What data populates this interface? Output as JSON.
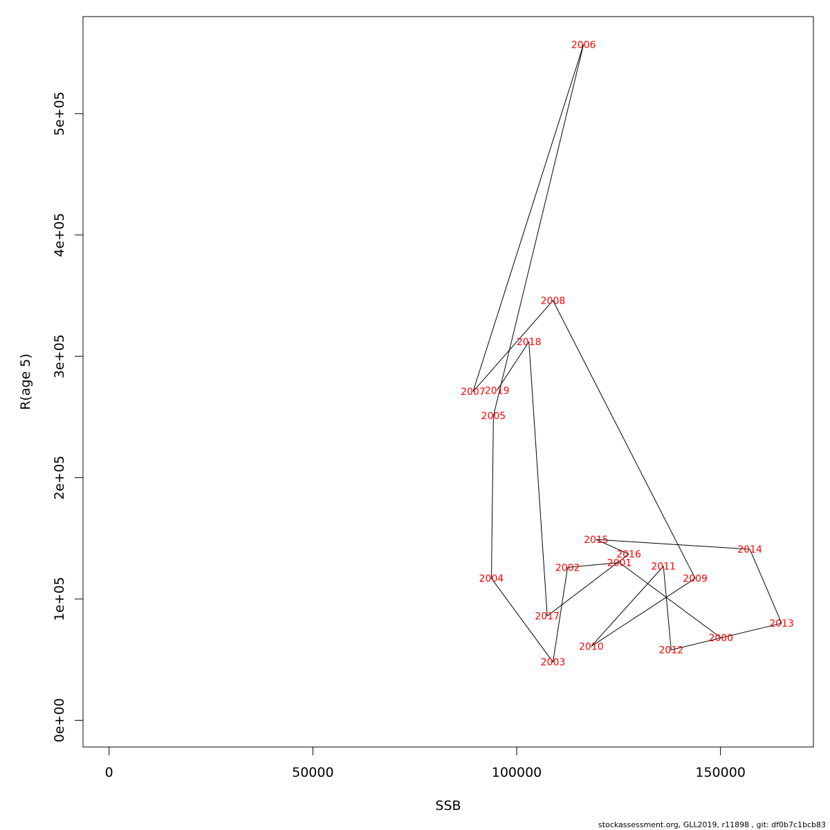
{
  "footer": "stockassessment.org, GLL2019, r11898 , git: df0b7c1bcb83",
  "chart_data": {
    "type": "line",
    "xlabel": "SSB",
    "ylabel": "R(age 5)",
    "xlim": [
      -6400,
      172800
    ],
    "ylim": [
      -22000,
      580000
    ],
    "x_ticks": [
      0,
      50000,
      100000,
      150000
    ],
    "x_tick_labels": [
      "0",
      "50000",
      "100000",
      "150000"
    ],
    "y_ticks": [
      0,
      100000,
      200000,
      300000,
      400000,
      500000
    ],
    "y_tick_labels": [
      "0e+00",
      "1e+05",
      "2e+05",
      "3e+05",
      "4e+05",
      "5e+05"
    ],
    "grid": false,
    "line_color": "#000000",
    "label_color": "#ff0000",
    "points": [
      {
        "year": "2000",
        "ssb": 150100,
        "r": 68000
      },
      {
        "year": "2001",
        "ssb": 125200,
        "r": 130000
      },
      {
        "year": "2002",
        "ssb": 112500,
        "r": 126000
      },
      {
        "year": "2003",
        "ssb": 108900,
        "r": 48000
      },
      {
        "year": "2004",
        "ssb": 93800,
        "r": 117000
      },
      {
        "year": "2005",
        "ssb": 94300,
        "r": 251000
      },
      {
        "year": "2006",
        "ssb": 116400,
        "r": 557000
      },
      {
        "year": "2007",
        "ssb": 89300,
        "r": 271000
      },
      {
        "year": "2008",
        "ssb": 108900,
        "r": 346000
      },
      {
        "year": "2009",
        "ssb": 143800,
        "r": 117000
      },
      {
        "year": "2010",
        "ssb": 118300,
        "r": 61000
      },
      {
        "year": "2011",
        "ssb": 136000,
        "r": 127000
      },
      {
        "year": "2012",
        "ssb": 137900,
        "r": 58000
      },
      {
        "year": "2013",
        "ssb": 165000,
        "r": 80000
      },
      {
        "year": "2014",
        "ssb": 157200,
        "r": 141000
      },
      {
        "year": "2015",
        "ssb": 119500,
        "r": 149000
      },
      {
        "year": "2016",
        "ssb": 127500,
        "r": 137000
      },
      {
        "year": "2017",
        "ssb": 107500,
        "r": 86000
      },
      {
        "year": "2018",
        "ssb": 103000,
        "r": 312000
      },
      {
        "year": "2019",
        "ssb": 95200,
        "r": 272000
      }
    ]
  }
}
